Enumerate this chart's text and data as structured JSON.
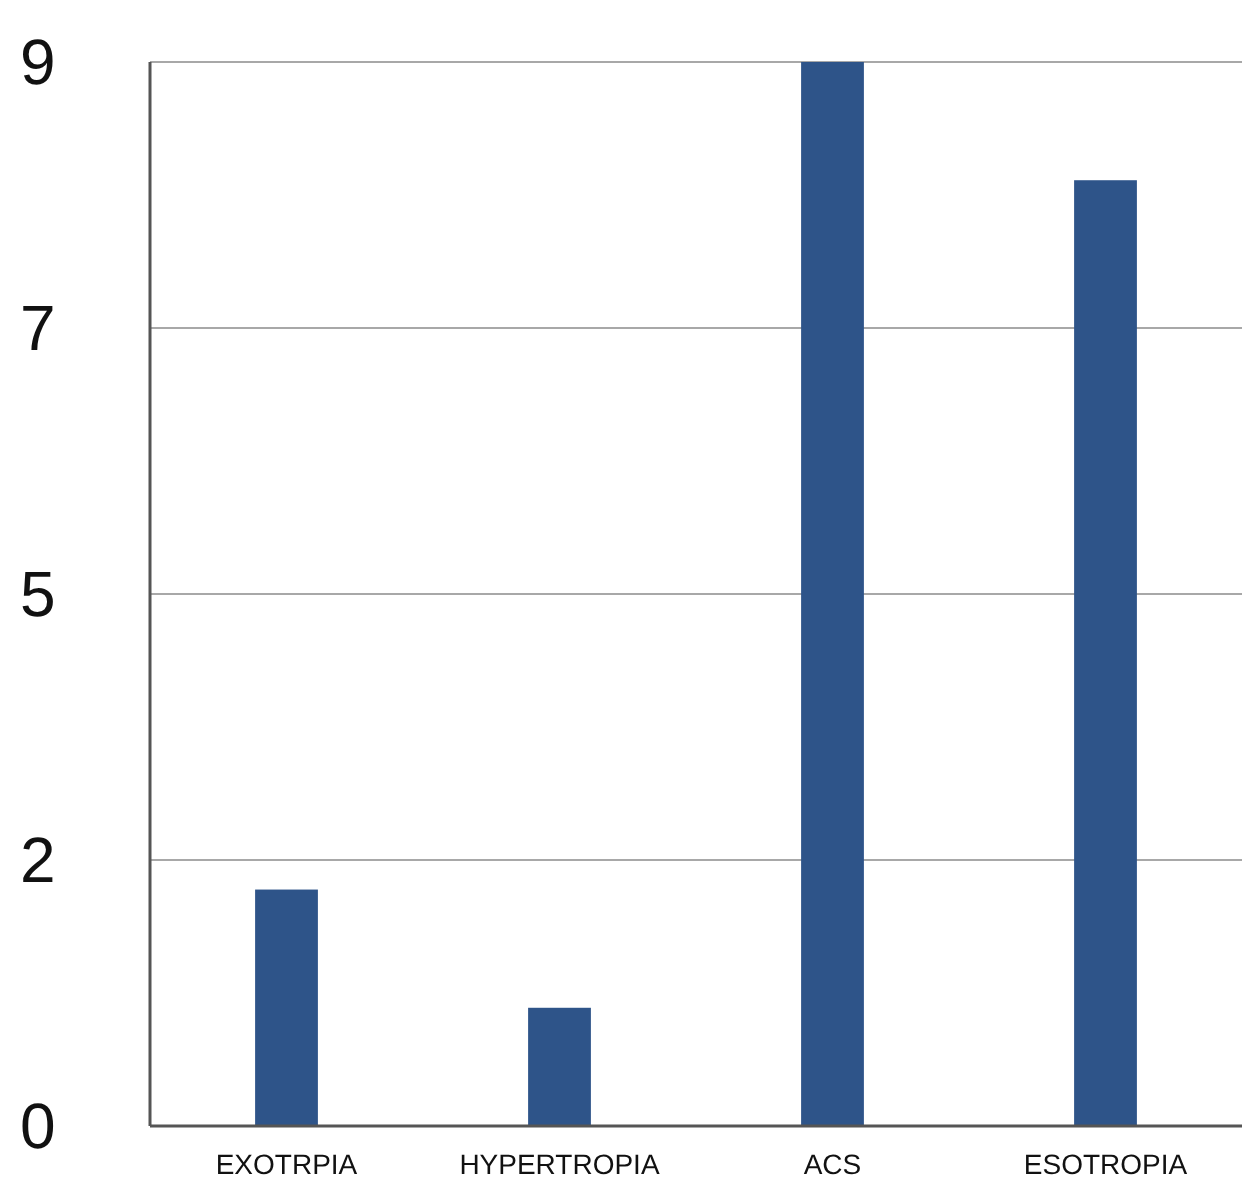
{
  "chart_data": {
    "type": "bar",
    "categories": [
      "EXOTRPIA",
      "HYPERTROPIA",
      "ACS",
      "ESOTROPIA"
    ],
    "values": [
      2,
      1,
      9,
      8
    ],
    "color": "#2e5489",
    "ylim": [
      0,
      9
    ],
    "yticks": [
      0,
      {
        "value": 2.25,
        "label": "2"
      },
      {
        "value": 4.5,
        "label": "5"
      },
      {
        "value": 6.75,
        "label": "7"
      },
      9
    ],
    "grid": "y"
  }
}
